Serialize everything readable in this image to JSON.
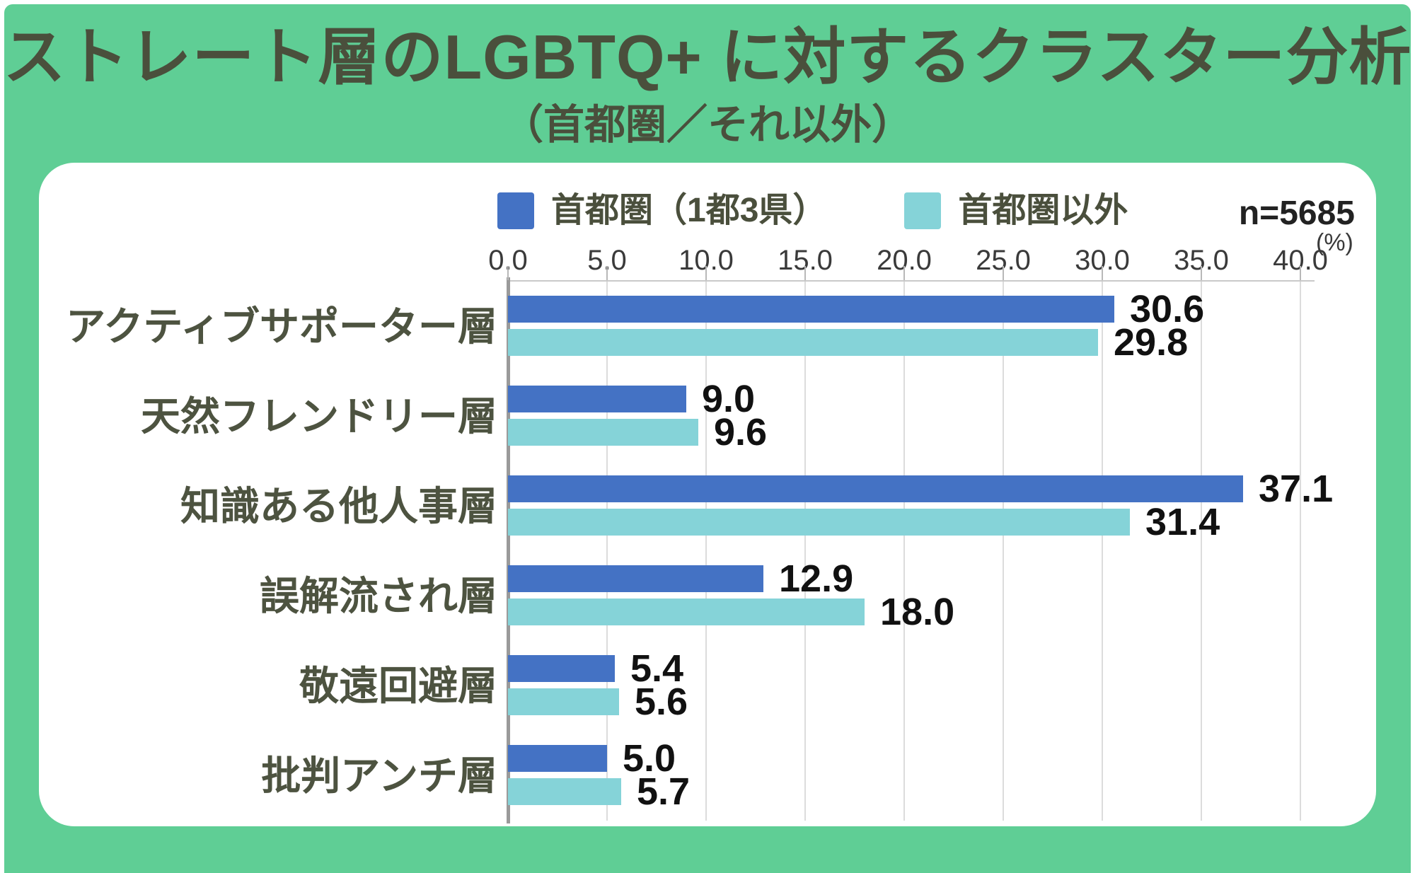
{
  "title": "ストレート層のLGBTQ+ に対するクラスター分析",
  "subtitle": "（首都圏／それ以外）",
  "legend": {
    "series1": "首都圏（1都3県）",
    "series2": "首都圏以外",
    "sample_size": "n=5685"
  },
  "axis": {
    "ticks": [
      "0.0",
      "5.0",
      "10.0",
      "15.0",
      "20.0",
      "25.0",
      "30.0",
      "35.0",
      "40.0"
    ],
    "unit_label": "(%)"
  },
  "colors": {
    "background_green": "#5fce95",
    "panel_white": "#ffffff",
    "series1_blue": "#4472c4",
    "series2_teal": "#85d3d8",
    "text_olive": "#4d5340",
    "value_text": "#111111",
    "gridline": "#dcdcdc"
  },
  "chart_data": {
    "type": "bar",
    "orientation": "horizontal",
    "title": "ストレート層のLGBTQ+ に対するクラスター分析（首都圏／それ以外）",
    "categories": [
      "アクティブサポーター層",
      "天然フレンドリー層",
      "知識ある他人事層",
      "誤解流され層",
      "敬遠回避層",
      "批判アンチ層"
    ],
    "series": [
      {
        "name": "首都圏（1都3県）",
        "color": "#4472c4",
        "values": [
          30.6,
          9.0,
          37.1,
          12.9,
          5.4,
          5.0
        ]
      },
      {
        "name": "首都圏以外",
        "color": "#85d3d8",
        "values": [
          29.8,
          9.6,
          31.4,
          18.0,
          5.6,
          5.7
        ]
      }
    ],
    "xlabel": "(%)",
    "xlim": [
      0,
      40
    ],
    "tick_step": 5,
    "grid": true,
    "legend_position": "top",
    "value_labels": true,
    "sample_size": "n=5685"
  }
}
